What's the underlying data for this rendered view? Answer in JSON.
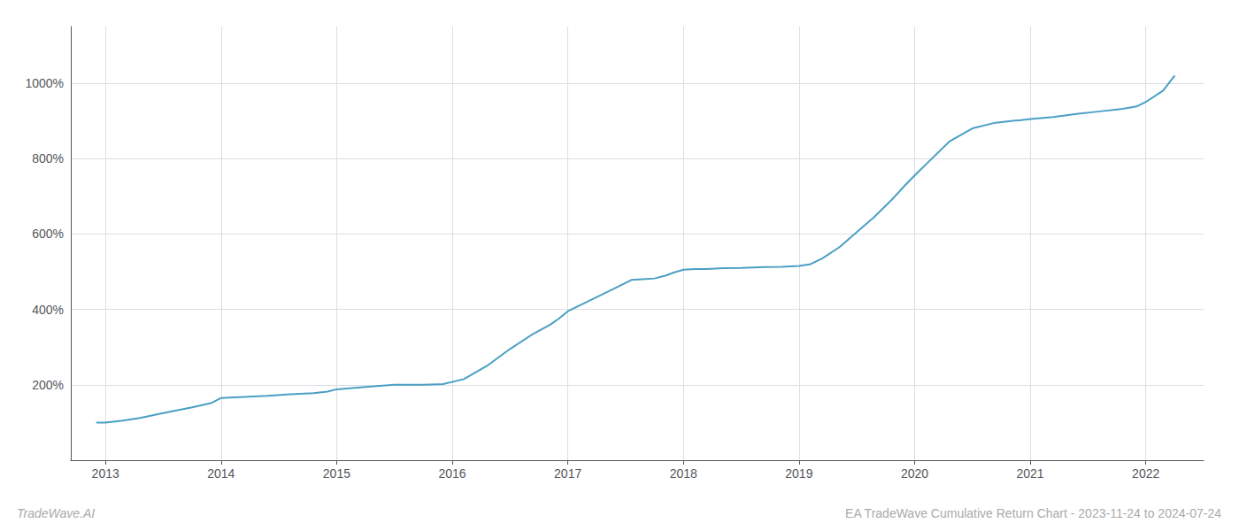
{
  "chart_data": {
    "type": "line",
    "title": "EA TradeWave Cumulative Return Chart - 2023-11-24 to 2024-07-24",
    "annotations": [
      "TradeWave.AI"
    ],
    "color": "#4a9fc4",
    "grid": true,
    "x": [
      2012.92,
      2013.0,
      2013.15,
      2013.3,
      2013.5,
      2013.75,
      2013.92,
      2014.0,
      2014.2,
      2014.4,
      2014.6,
      2014.8,
      2014.92,
      2015.0,
      2015.2,
      2015.4,
      2015.5,
      2015.6,
      2015.75,
      2015.92,
      2016.1,
      2016.3,
      2016.5,
      2016.7,
      2016.85,
      2016.92,
      2017.0,
      2017.2,
      2017.4,
      2017.55,
      2017.65,
      2017.75,
      2017.85,
      2017.92,
      2018.0,
      2018.1,
      2018.2,
      2018.35,
      2018.5,
      2018.7,
      2018.85,
      2018.92,
      2019.0,
      2019.1,
      2019.2,
      2019.35,
      2019.5,
      2019.65,
      2019.8,
      2019.92,
      2020.0,
      2020.15,
      2020.3,
      2020.5,
      2020.7,
      2020.85,
      2020.92,
      2021.0,
      2021.2,
      2021.4,
      2021.6,
      2021.8,
      2021.92,
      2022.0,
      2022.15,
      2022.25
    ],
    "values": [
      100,
      100,
      105,
      112,
      125,
      140,
      152,
      165,
      168,
      171,
      175,
      178,
      182,
      188,
      193,
      198,
      200,
      200,
      200,
      202,
      215,
      250,
      295,
      335,
      360,
      375,
      395,
      425,
      455,
      478,
      480,
      482,
      490,
      498,
      505,
      507,
      507,
      509,
      510,
      512,
      513,
      514,
      515,
      520,
      535,
      565,
      605,
      645,
      690,
      730,
      755,
      800,
      845,
      880,
      895,
      900,
      902,
      905,
      910,
      918,
      925,
      932,
      938,
      950,
      980,
      1020
    ],
    "xlim": [
      2012.7,
      2022.5
    ],
    "xticks": [
      2013,
      2014,
      2015,
      2016,
      2017,
      2018,
      2019,
      2020,
      2021,
      2022
    ],
    "ylim": [
      0,
      1150
    ],
    "yticks": [
      {
        "value": 200,
        "label": "200%"
      },
      {
        "value": 400,
        "label": "400%"
      },
      {
        "value": 600,
        "label": "600%"
      },
      {
        "value": 800,
        "label": "800%"
      },
      {
        "value": 1000,
        "label": "1000%"
      }
    ]
  }
}
